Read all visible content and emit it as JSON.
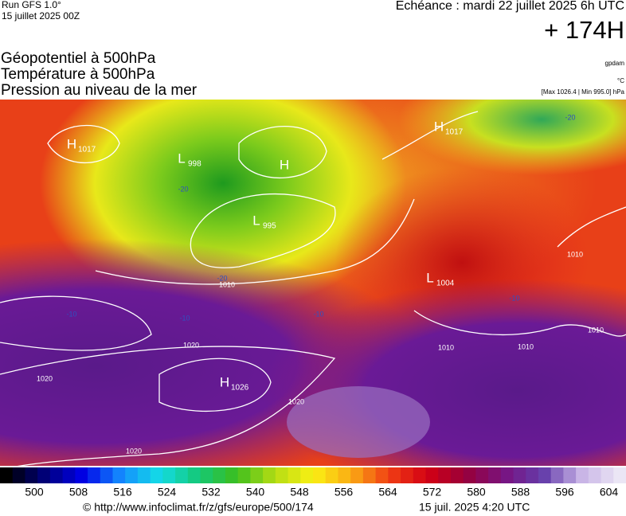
{
  "header": {
    "run": "Run GFS 1.0°",
    "date": "15 juillet 2025 00Z",
    "echeance": "Echéance : mardi 22 juillet 2025 6h UTC",
    "horizon": "+ 174H"
  },
  "layers": [
    "Géopotentiel à 500hPa",
    "Température à 500hPa",
    "Pression au niveau de la mer"
  ],
  "units": {
    "geopotential": "gpdam",
    "temperature": "°C",
    "pressure": "[Max 1026.4 | Min 995.0] hPa"
  },
  "centers": [
    {
      "type": "H",
      "value": 1017
    },
    {
      "type": "L",
      "value": 998
    },
    {
      "type": "H",
      "value": null
    },
    {
      "type": "L",
      "value": 995
    },
    {
      "type": "L",
      "value": 1004
    },
    {
      "type": "H",
      "value": 1026
    },
    {
      "type": "H",
      "value": 1017
    }
  ],
  "isobar_labels": [
    1010,
    1010,
    1010,
    1010,
    1010,
    1020,
    1020,
    1020,
    1020
  ],
  "temperature_labels": [
    -20,
    -20,
    -20,
    -10,
    -10,
    -10,
    -10
  ],
  "colorbar_ticks": [
    500,
    508,
    516,
    524,
    532,
    540,
    548,
    556,
    564,
    572,
    580,
    588,
    596,
    604
  ],
  "footer": {
    "url": "© http://www.infoclimat.fr/z/gfs/europe/500/174",
    "timestamp": "15 juil. 2025  4:20 UTC"
  }
}
